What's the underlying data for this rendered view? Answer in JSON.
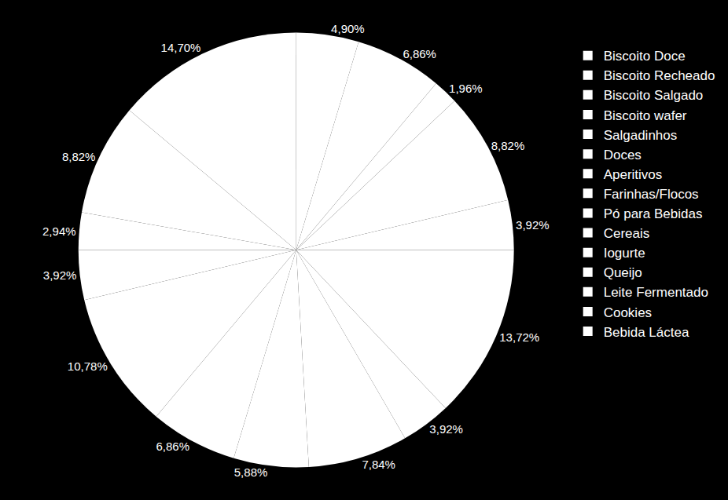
{
  "chart_data": {
    "type": "pie",
    "categories": [
      "Biscoito Doce",
      "Biscoito Recheado",
      "Biscoito Salgado",
      "Biscoito wafer",
      "Salgadinhos",
      "Doces",
      "Aperitivos",
      "Farinhas/Flocos",
      "Pó para Bebidas",
      "Cereais",
      "Iogurte",
      "Queijo",
      "Leite Fermentado",
      "Cookies",
      "Bebida Láctea"
    ],
    "values": [
      4.9,
      6.86,
      1.96,
      8.82,
      3.92,
      13.72,
      3.92,
      7.84,
      5.88,
      6.86,
      10.78,
      3.92,
      2.94,
      8.82,
      14.7
    ],
    "value_labels": [
      "4,90%",
      "6,86%",
      "1,96%",
      "8,82%",
      "3,92%",
      "13,72%",
      "3,92%",
      "7,84%",
      "5,88%",
      "6,86%",
      "10,78%",
      "3,92%",
      "2,94%",
      "8,82%",
      "14,70%"
    ],
    "colors": [
      "#ffffff",
      "#ffffff",
      "#ffffff",
      "#ffffff",
      "#ffffff",
      "#ffffff",
      "#ffffff",
      "#ffffff",
      "#ffffff",
      "#ffffff",
      "#ffffff",
      "#ffffff",
      "#ffffff",
      "#ffffff",
      "#ffffff"
    ],
    "data_labels": true,
    "legend": "right"
  }
}
